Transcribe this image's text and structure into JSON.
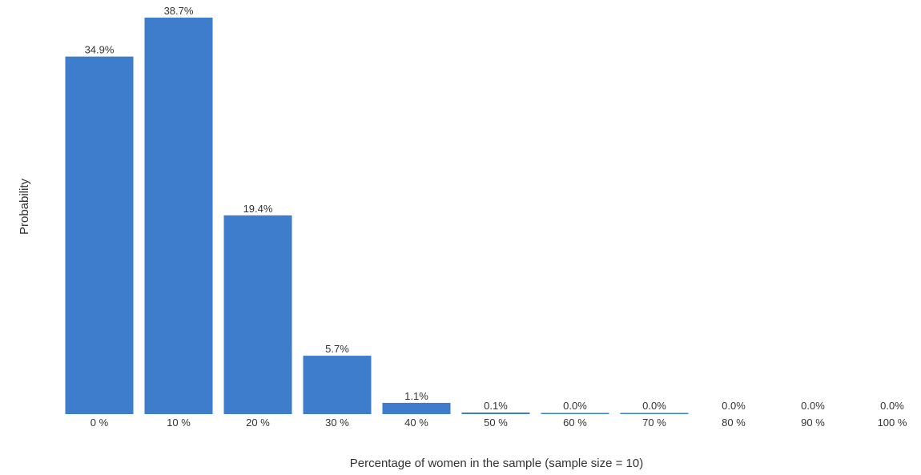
{
  "chart_data": {
    "type": "bar",
    "categories": [
      "0 %",
      "10 %",
      "20 %",
      "30 %",
      "40 %",
      "50 %",
      "60 %",
      "70 %",
      "80 %",
      "90 %",
      "100 %"
    ],
    "values": [
      34.9,
      38.7,
      19.4,
      5.7,
      1.1,
      0.1,
      0.0,
      0.0,
      0.0,
      0.0,
      0.0
    ],
    "data_labels": [
      "34.9%",
      "38.7%",
      "19.4%",
      "5.7%",
      "1.1%",
      "0.1%",
      "0.0%",
      "0.0%",
      "0.0%",
      "0.0%",
      "0.0%"
    ],
    "xlabel": "Percentage of women in the sample (sample size = 10)",
    "ylabel": "Probability",
    "ylim": [
      0,
      38.7
    ],
    "grid": false,
    "legend": "none",
    "bar_color": "#3d7dcc"
  }
}
